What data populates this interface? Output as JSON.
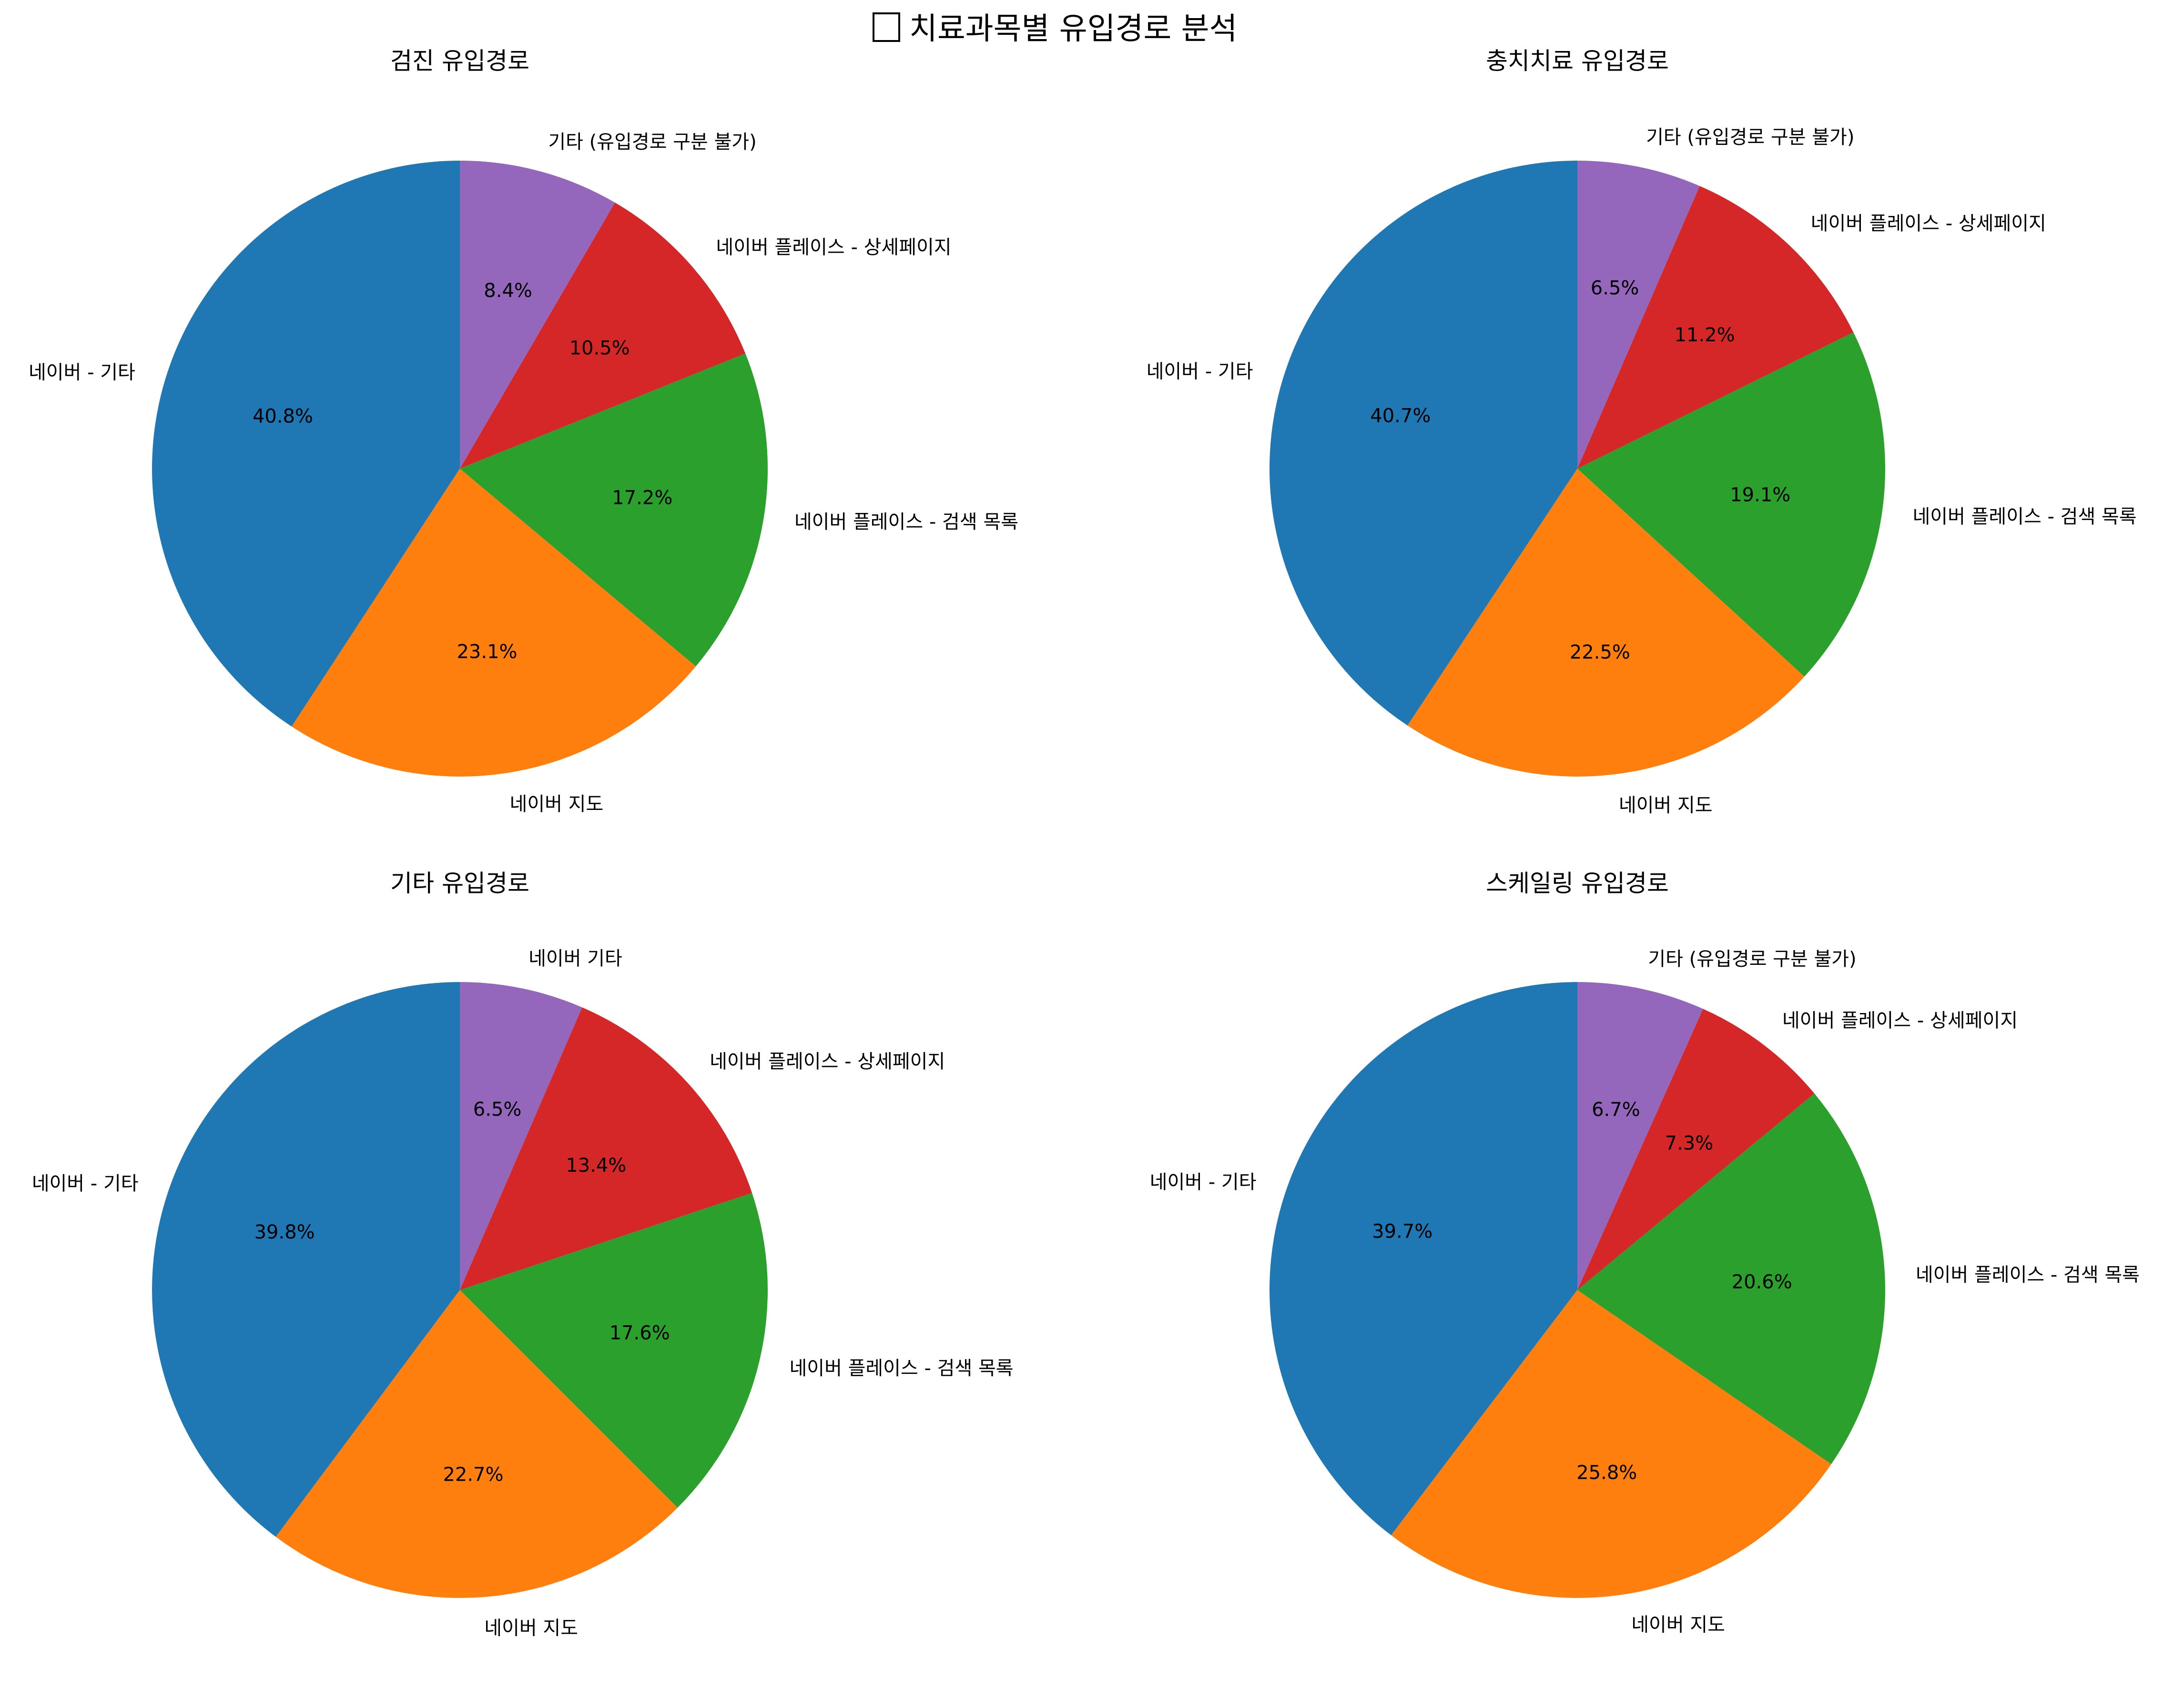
{
  "figure": {
    "title": "치료과목별 유입경로 분석",
    "title_icon": "empty-box-glyph"
  },
  "chart_data": [
    {
      "type": "pie",
      "title": "검진 유입경로",
      "start_angle_deg": 90,
      "direction": "counterclockwise",
      "slices": [
        {
          "label": "네이버 - 기타",
          "value": 40.8,
          "pct_text": "40.8%",
          "color": "#1f77b4"
        },
        {
          "label": "네이버 지도",
          "value": 23.1,
          "pct_text": "23.1%",
          "color": "#ff7f0e"
        },
        {
          "label": "네이버 플레이스 - 검색 목록",
          "value": 17.2,
          "pct_text": "17.2%",
          "color": "#2ca02c"
        },
        {
          "label": "네이버 플레이스 - 상세페이지",
          "value": 10.5,
          "pct_text": "10.5%",
          "color": "#d62728"
        },
        {
          "label": "기타 (유입경로 구분 불가)",
          "value": 8.4,
          "pct_text": "8.4%",
          "color": "#9467bd"
        }
      ]
    },
    {
      "type": "pie",
      "title": "충치치료 유입경로",
      "start_angle_deg": 90,
      "direction": "counterclockwise",
      "slices": [
        {
          "label": "네이버 - 기타",
          "value": 40.7,
          "pct_text": "40.7%",
          "color": "#1f77b4"
        },
        {
          "label": "네이버 지도",
          "value": 22.5,
          "pct_text": "22.5%",
          "color": "#ff7f0e"
        },
        {
          "label": "네이버 플레이스 - 검색 목록",
          "value": 19.1,
          "pct_text": "19.1%",
          "color": "#2ca02c"
        },
        {
          "label": "네이버 플레이스 - 상세페이지",
          "value": 11.2,
          "pct_text": "11.2%",
          "color": "#d62728"
        },
        {
          "label": "기타 (유입경로 구분 불가)",
          "value": 6.5,
          "pct_text": "6.5%",
          "color": "#9467bd"
        }
      ]
    },
    {
      "type": "pie",
      "title": "기타 유입경로",
      "start_angle_deg": 90,
      "direction": "counterclockwise",
      "slices": [
        {
          "label": "네이버 - 기타",
          "value": 39.8,
          "pct_text": "39.8%",
          "color": "#1f77b4"
        },
        {
          "label": "네이버 지도",
          "value": 22.7,
          "pct_text": "22.7%",
          "color": "#ff7f0e"
        },
        {
          "label": "네이버 플레이스 - 검색 목록",
          "value": 17.6,
          "pct_text": "17.6%",
          "color": "#2ca02c"
        },
        {
          "label": "네이버 플레이스 - 상세페이지",
          "value": 13.4,
          "pct_text": "13.4%",
          "color": "#d62728"
        },
        {
          "label": "네이버 기타",
          "value": 6.5,
          "pct_text": "6.5%",
          "color": "#9467bd"
        }
      ]
    },
    {
      "type": "pie",
      "title": "스케일링 유입경로",
      "start_angle_deg": 90,
      "direction": "counterclockwise",
      "slices": [
        {
          "label": "네이버 - 기타",
          "value": 39.7,
          "pct_text": "39.7%",
          "color": "#1f77b4"
        },
        {
          "label": "네이버 지도",
          "value": 25.8,
          "pct_text": "25.8%",
          "color": "#ff7f0e"
        },
        {
          "label": "네이버 플레이스 - 검색 목록",
          "value": 20.6,
          "pct_text": "20.6%",
          "color": "#2ca02c"
        },
        {
          "label": "네이버 플레이스 - 상세페이지",
          "value": 7.3,
          "pct_text": "7.3%",
          "color": "#d62728"
        },
        {
          "label": "기타 (유입경로 구분 불가)",
          "value": 6.7,
          "pct_text": "6.7%",
          "color": "#9467bd"
        }
      ]
    }
  ]
}
